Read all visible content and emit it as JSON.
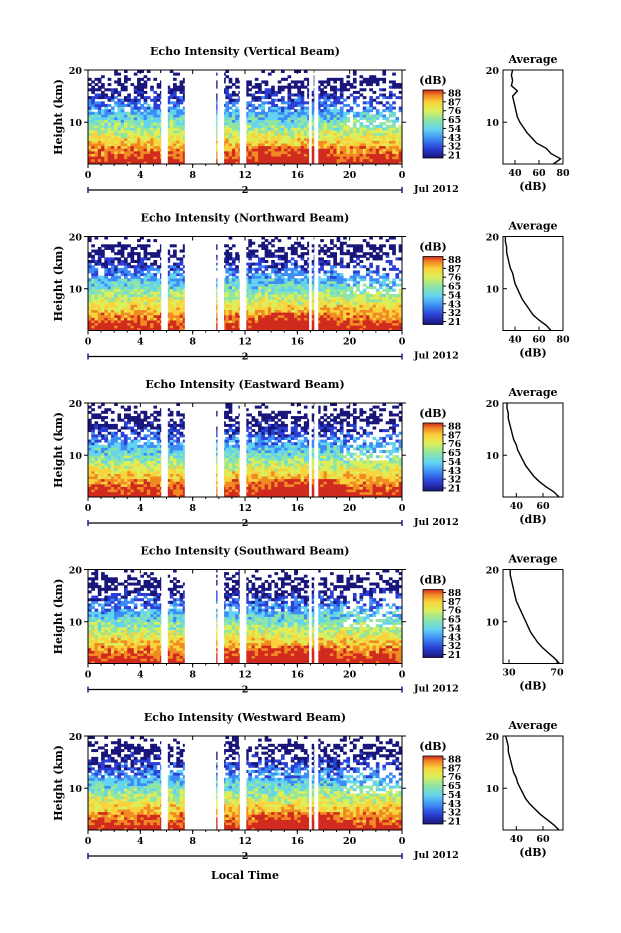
{
  "figure": {
    "xlabel": "Local Time",
    "date_label": "Jul 2012",
    "day_marker": "2",
    "cbar_unit": "(dB)",
    "avg_title": "Average",
    "avg_xlabel": "(dB)"
  },
  "chart_data": [
    {
      "type": "heatmap",
      "title": "Echo Intensity (Vertical Beam)",
      "ylabel": "Height (km)",
      "xlabel": "Local Time",
      "x_ticks": [
        "0",
        "4",
        "8",
        "12",
        "16",
        "20",
        "0"
      ],
      "y_ticks": [
        "20",
        "10"
      ],
      "xlim": [
        0,
        24
      ],
      "ylim": [
        2,
        20
      ],
      "colorbar": {
        "unit": "(dB)",
        "ticks": [
          "88",
          "87",
          "76",
          "65",
          "54",
          "43",
          "32",
          "21"
        ]
      },
      "colors": [
        "#18167a",
        "#2b3fd4",
        "#3d8cf5",
        "#63d4f0",
        "#8fe5a4",
        "#dcef5a",
        "#f9d23c",
        "#f28a24",
        "#d12a1e"
      ],
      "data_gaps_hours": [
        [
          5.6,
          6.1
        ],
        [
          7.4,
          9.8
        ],
        [
          9.9,
          10.4
        ],
        [
          11.6,
          12.1
        ],
        [
          16.9,
          17.1
        ],
        [
          17.3,
          17.6
        ]
      ],
      "profile": {
        "title": "Average",
        "xlabel": "(dB)",
        "x_ticks": [
          "40",
          "60",
          "80"
        ],
        "xlim": [
          30,
          80
        ],
        "y_ticks": [
          "20",
          "10"
        ],
        "heights": [
          2,
          3,
          4,
          5,
          6,
          7,
          8,
          9,
          10,
          11,
          12,
          13,
          14,
          15,
          16,
          17,
          18,
          19,
          20
        ],
        "values": [
          72,
          78,
          70,
          66,
          58,
          54,
          50,
          47,
          44,
          42,
          41,
          40,
          39,
          38,
          42,
          37,
          38,
          37,
          38
        ]
      }
    },
    {
      "type": "heatmap",
      "title": "Echo Intensity (Northward Beam)",
      "ylabel": "Height (km)",
      "xlabel": "Local Time",
      "x_ticks": [
        "0",
        "4",
        "8",
        "12",
        "16",
        "20",
        "0"
      ],
      "y_ticks": [
        "20",
        "10"
      ],
      "xlim": [
        0,
        24
      ],
      "ylim": [
        2,
        20
      ],
      "colorbar": {
        "unit": "(dB)",
        "ticks": [
          "88",
          "87",
          "76",
          "65",
          "54",
          "43",
          "32",
          "21"
        ]
      },
      "colors": [
        "#18167a",
        "#2b3fd4",
        "#3d8cf5",
        "#63d4f0",
        "#8fe5a4",
        "#dcef5a",
        "#f9d23c",
        "#f28a24",
        "#d12a1e"
      ],
      "data_gaps_hours": [
        [
          5.6,
          6.1
        ],
        [
          7.4,
          9.8
        ],
        [
          9.9,
          10.4
        ],
        [
          11.6,
          12.1
        ],
        [
          16.9,
          17.1
        ],
        [
          17.3,
          17.6
        ]
      ],
      "profile": {
        "title": "Average",
        "xlabel": "(dB)",
        "x_ticks": [
          "40",
          "60",
          "80"
        ],
        "xlim": [
          30,
          80
        ],
        "y_ticks": [
          "20",
          "10"
        ],
        "heights": [
          2,
          3,
          4,
          5,
          6,
          7,
          8,
          9,
          10,
          11,
          12,
          13,
          14,
          15,
          16,
          17,
          18,
          19,
          20
        ],
        "values": [
          70,
          66,
          60,
          55,
          52,
          49,
          46,
          44,
          42,
          40,
          39,
          38,
          36,
          35,
          34,
          33,
          33,
          32,
          32
        ]
      }
    },
    {
      "type": "heatmap",
      "title": "Echo Intensity (Eastward Beam)",
      "ylabel": "Height (km)",
      "xlabel": "Local Time",
      "x_ticks": [
        "0",
        "4",
        "8",
        "12",
        "16",
        "20",
        "0"
      ],
      "y_ticks": [
        "20",
        "10"
      ],
      "xlim": [
        0,
        24
      ],
      "ylim": [
        2,
        20
      ],
      "colorbar": {
        "unit": "(dB)",
        "ticks": [
          "88",
          "87",
          "76",
          "65",
          "54",
          "43",
          "32",
          "21"
        ]
      },
      "colors": [
        "#18167a",
        "#2b3fd4",
        "#3d8cf5",
        "#63d4f0",
        "#8fe5a4",
        "#dcef5a",
        "#f9d23c",
        "#f28a24",
        "#d12a1e"
      ],
      "data_gaps_hours": [
        [
          5.6,
          6.1
        ],
        [
          7.4,
          9.8
        ],
        [
          9.9,
          10.4
        ],
        [
          11.6,
          12.1
        ],
        [
          16.9,
          17.1
        ],
        [
          17.3,
          17.6
        ]
      ],
      "profile": {
        "title": "Average",
        "xlabel": "(dB)",
        "x_ticks": [
          "40",
          "60"
        ],
        "xlim": [
          30,
          75
        ],
        "y_ticks": [
          "20",
          "10"
        ],
        "heights": [
          2,
          3,
          4,
          5,
          6,
          7,
          8,
          9,
          10,
          11,
          12,
          13,
          14,
          15,
          16,
          17,
          18,
          19,
          20
        ],
        "values": [
          72,
          68,
          62,
          57,
          53,
          50,
          47,
          45,
          43,
          41,
          40,
          38,
          37,
          36,
          35,
          34,
          34,
          33,
          33
        ]
      }
    },
    {
      "type": "heatmap",
      "title": "Echo Intensity (Southward Beam)",
      "ylabel": "Height (km)",
      "xlabel": "Local Time",
      "x_ticks": [
        "0",
        "4",
        "8",
        "12",
        "16",
        "20",
        "0"
      ],
      "y_ticks": [
        "20",
        "10"
      ],
      "xlim": [
        0,
        24
      ],
      "ylim": [
        2,
        20
      ],
      "colorbar": {
        "unit": "(dB)",
        "ticks": [
          "88",
          "87",
          "76",
          "65",
          "54",
          "43",
          "32",
          "21"
        ]
      },
      "colors": [
        "#18167a",
        "#2b3fd4",
        "#3d8cf5",
        "#63d4f0",
        "#8fe5a4",
        "#dcef5a",
        "#f9d23c",
        "#f28a24",
        "#d12a1e"
      ],
      "data_gaps_hours": [
        [
          5.6,
          6.1
        ],
        [
          7.4,
          9.8
        ],
        [
          9.9,
          10.4
        ],
        [
          11.6,
          12.1
        ],
        [
          16.9,
          17.1
        ],
        [
          17.3,
          17.6
        ]
      ],
      "profile": {
        "title": "Average",
        "xlabel": "(dB)",
        "x_ticks": [
          "30",
          "70"
        ],
        "xlim": [
          25,
          75
        ],
        "y_ticks": [
          "20",
          "10"
        ],
        "heights": [
          2,
          3,
          4,
          5,
          6,
          7,
          8,
          9,
          10,
          11,
          12,
          13,
          14,
          15,
          16,
          17,
          18,
          19,
          20
        ],
        "values": [
          72,
          68,
          63,
          58,
          54,
          51,
          48,
          46,
          44,
          42,
          40,
          38,
          36,
          35,
          34,
          33,
          32,
          31,
          31
        ]
      }
    },
    {
      "type": "heatmap",
      "title": "Echo Intensity (Westward Beam)",
      "ylabel": "Height (km)",
      "xlabel": "Local Time",
      "x_ticks": [
        "0",
        "4",
        "8",
        "12",
        "16",
        "20",
        "0"
      ],
      "y_ticks": [
        "20",
        "10"
      ],
      "xlim": [
        0,
        24
      ],
      "ylim": [
        2,
        20
      ],
      "colorbar": {
        "unit": "(dB)",
        "ticks": [
          "88",
          "87",
          "76",
          "65",
          "54",
          "43",
          "32",
          "21"
        ]
      },
      "colors": [
        "#18167a",
        "#2b3fd4",
        "#3d8cf5",
        "#63d4f0",
        "#8fe5a4",
        "#dcef5a",
        "#f9d23c",
        "#f28a24",
        "#d12a1e"
      ],
      "data_gaps_hours": [
        [
          5.6,
          6.1
        ],
        [
          7.4,
          9.8
        ],
        [
          9.9,
          10.4
        ],
        [
          11.6,
          12.1
        ],
        [
          16.9,
          17.1
        ],
        [
          17.3,
          17.6
        ]
      ],
      "profile": {
        "title": "Average",
        "xlabel": "(dB)",
        "x_ticks": [
          "40",
          "60"
        ],
        "xlim": [
          30,
          75
        ],
        "y_ticks": [
          "20",
          "10"
        ],
        "heights": [
          2,
          3,
          4,
          5,
          6,
          7,
          8,
          9,
          10,
          11,
          12,
          13,
          14,
          15,
          16,
          17,
          18,
          19,
          20
        ],
        "values": [
          72,
          68,
          63,
          58,
          54,
          50,
          47,
          45,
          43,
          41,
          40,
          38,
          37,
          36,
          35,
          34,
          34,
          33,
          32
        ]
      }
    }
  ]
}
